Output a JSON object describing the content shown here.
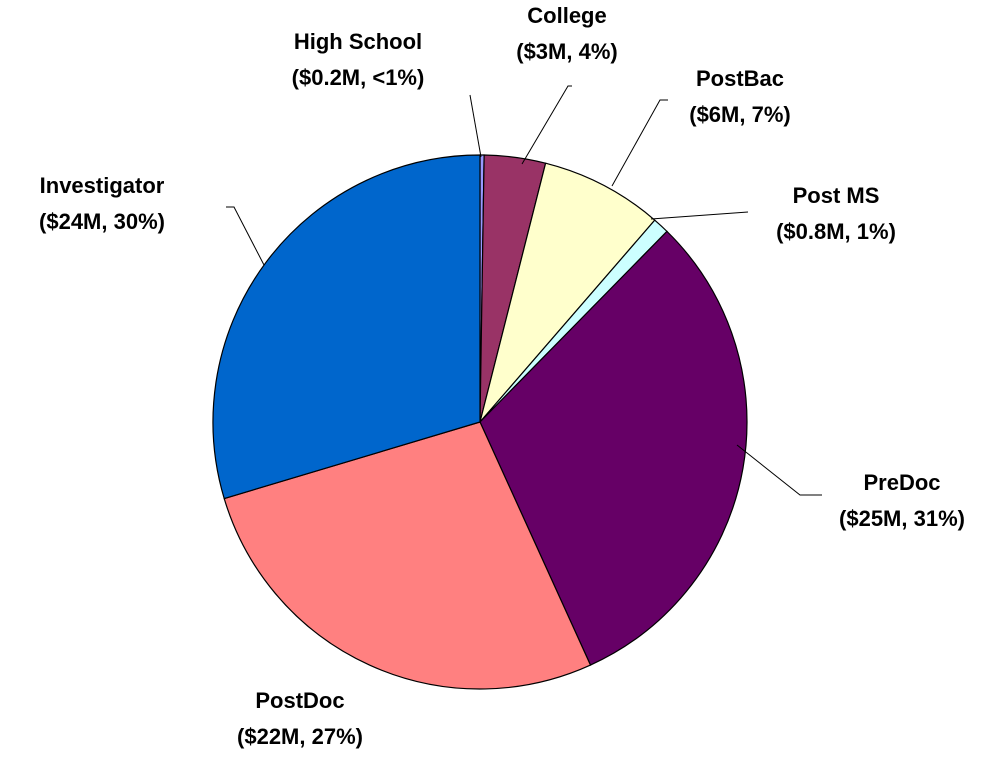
{
  "chart_data": {
    "type": "pie",
    "categories": [
      "High School",
      "College",
      "PostBac",
      "Post MS",
      "PreDoc",
      "PostDoc",
      "Investigator"
    ],
    "values": [
      0.2,
      3,
      6,
      0.8,
      25,
      22,
      24
    ],
    "value_labels": [
      "($0.2M, <1%)",
      "($3M, 4%)",
      "($6M, 7%)",
      "($0.8M, 1%)",
      "($25M, 31%)",
      "($22M, 27%)",
      "($24M, 30%)"
    ],
    "colors": [
      "#9999ff",
      "#993366",
      "#ffffcc",
      "#ccffff",
      "#660066",
      "#ff8080",
      "#0066cc"
    ]
  }
}
